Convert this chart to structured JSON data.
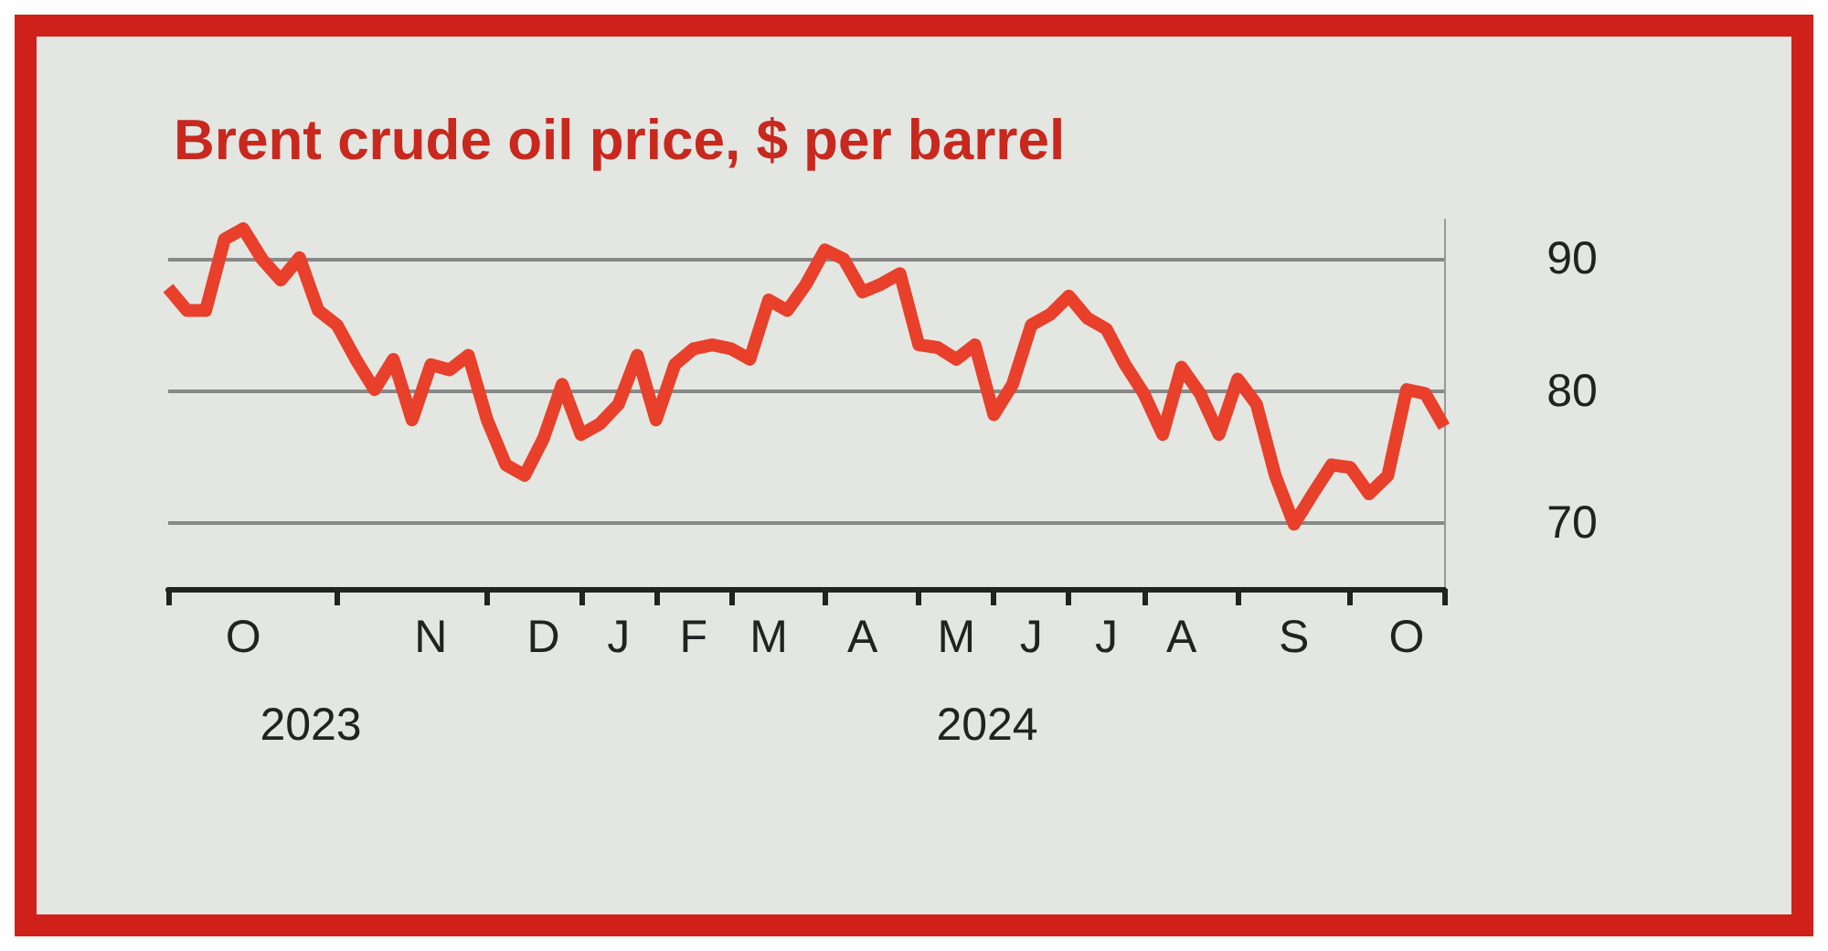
{
  "chart_data": {
    "type": "line",
    "title": "Brent crude oil price, $ per barrel",
    "categories": [
      null,
      null,
      null,
      null,
      "O",
      null,
      null,
      null,
      null,
      null,
      null,
      null,
      null,
      null,
      "N",
      null,
      null,
      null,
      null,
      null,
      "D",
      null,
      null,
      null,
      "J",
      null,
      null,
      null,
      "F",
      null,
      null,
      null,
      "M",
      null,
      null,
      null,
      null,
      "A",
      null,
      null,
      null,
      null,
      "M",
      null,
      null,
      null,
      "J",
      null,
      null,
      null,
      "J",
      null,
      null,
      null,
      "A",
      null,
      null,
      null,
      null,
      null,
      "S",
      null,
      null,
      null,
      null,
      null,
      "O",
      null,
      null
    ],
    "values": [
      87.8,
      86.1,
      86.1,
      91.5,
      92.3,
      90,
      88.4,
      90.1,
      86.1,
      85,
      82.4,
      80.1,
      82.4,
      77.8,
      82,
      81.6,
      82.7,
      77.8,
      74.4,
      73.6,
      76.4,
      80.5,
      76.7,
      77.5,
      79,
      82.7,
      77.8,
      82,
      83.2,
      83.5,
      83.2,
      82.4,
      86.9,
      86.1,
      88.1,
      90.7,
      90,
      87.5,
      88.1,
      88.9,
      83.5,
      83.3,
      82.4,
      83.5,
      78.2,
      80.5,
      85,
      85.8,
      87.2,
      85.5,
      84.7,
      82,
      79.8,
      76.7,
      81.8,
      79.8,
      76.7,
      80.9,
      79,
      73.6,
      69.9,
      72.2,
      74.4,
      74.2,
      72.2,
      73.6,
      80.1,
      79.8,
      77.3
    ],
    "color": "#e8402a",
    "ylim": [
      65,
      93
    ],
    "yticks": [
      70,
      80,
      90
    ],
    "grid": "y",
    "annotations": [
      "2023",
      "2024"
    ]
  }
}
